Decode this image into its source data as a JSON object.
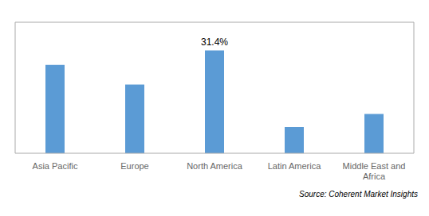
{
  "chart_data": {
    "type": "bar",
    "categories": [
      "Asia Pacific",
      "Europe",
      "North America",
      "Latin America",
      "Middle East and\nAfrica"
    ],
    "values": [
      27.0,
      21.0,
      31.4,
      8.0,
      12.0
    ],
    "color": "#5b9bd5",
    "ylim": [
      0,
      40
    ],
    "tick_labels": "x",
    "annotations": [
      {
        "category": "North America",
        "text": "31.4%"
      }
    ],
    "source": "Source: Coherent Market Insights"
  }
}
